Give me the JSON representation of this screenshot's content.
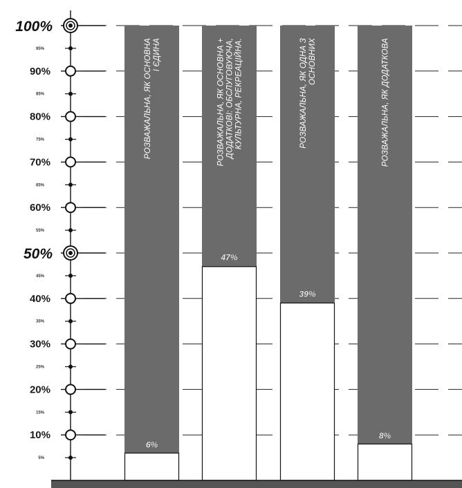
{
  "chart_data": {
    "type": "bar",
    "title": "",
    "xlabel": "",
    "ylabel": "",
    "ylim": [
      0,
      100
    ],
    "ytick_labels_major": [
      "10%",
      "20%",
      "30%",
      "40%",
      "50%",
      "60%",
      "70%",
      "80%",
      "90%",
      "100%"
    ],
    "ytick_labels_minor": [
      "5%",
      "15%",
      "25%",
      "35%",
      "45%",
      "55%",
      "65%",
      "75%",
      "85%",
      "95%"
    ],
    "grid": true,
    "legend": "none",
    "categories": [
      [
        "РОЗВАЖАЛЬНА, ЯК ОСНОВНА",
        "І ЄДИНА"
      ],
      [
        "РОЗВАЖАЛЬНА, ЯК ОСНОВНА +",
        "ДОДАТКОВІ: ОБСЛУГОВУЮЧА,",
        "КУЛЬТУРНА, РЕКРЕАЦІЙНА."
      ],
      [
        "РОЗВАЖАЛЬНА, ЯК ОДНА З",
        "ОСНОВНИХ"
      ],
      [
        "РОЗВАЖАЛЬНА, ЯК ДОДАТКОВА"
      ]
    ],
    "values": [
      6,
      47,
      39,
      8
    ],
    "value_labels": [
      "6%",
      "47%",
      "39%",
      "8%"
    ],
    "colors": {
      "fill": "#6b6b6b",
      "value": "#ffffff",
      "grid": "#222222",
      "baseline": "#555555"
    }
  }
}
